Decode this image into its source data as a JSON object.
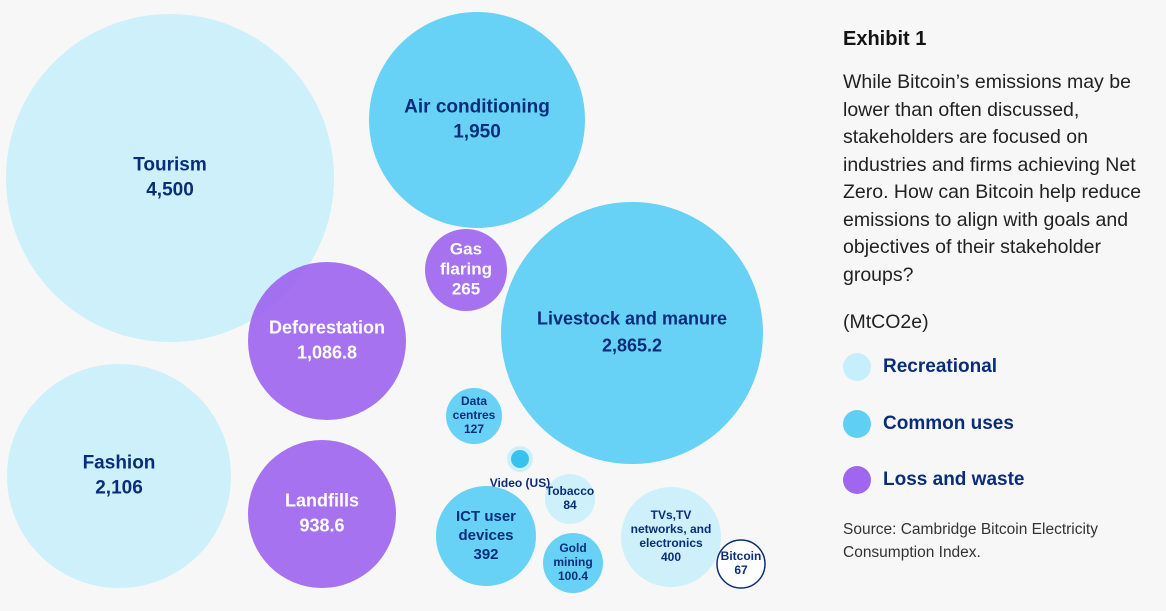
{
  "exhibit": {
    "title": "Exhibit 1",
    "description": "While Bitcoin’s emissions may be lower than often discussed, stakeholders are focused on industries and firms achieving Net Zero. How can Bitcoin help reduce emissions to align with goals and objectives of their stakeholder groups?",
    "units": "(MtCO2e)",
    "source": "Source: Cambridge Bitcoin Electricity Consumption Index."
  },
  "legend": [
    {
      "key": "recreational",
      "label": "Recreational",
      "color": "#c6eefc"
    },
    {
      "key": "common",
      "label": "Common uses",
      "color": "#5fd0f4"
    },
    {
      "key": "loss",
      "label": "Loss and waste",
      "color": "#a066ee"
    }
  ],
  "chart_data": {
    "type": "bubble",
    "title": "",
    "unit": "MtCO2e",
    "items": [
      {
        "label": "Tourism",
        "value_label": "4,500",
        "value": 4500,
        "category": "recreational"
      },
      {
        "label": "Air conditioning",
        "value_label": "1,950",
        "value": 1950,
        "category": "common"
      },
      {
        "label": "Livestock and manure",
        "value_label": "2,865.2",
        "value": 2865.2,
        "category": "common"
      },
      {
        "label": "Deforestation",
        "value_label": "1,086.8",
        "value": 1086.8,
        "category": "loss"
      },
      {
        "label": "Fashion",
        "value_label": "2,106",
        "value": 2106,
        "category": "recreational"
      },
      {
        "label": "Landfills",
        "value_label": "938.6",
        "value": 938.6,
        "category": "loss"
      },
      {
        "label": "Gas flaring",
        "value_label": "265",
        "value": 265,
        "category": "loss"
      },
      {
        "label": "Data centres",
        "value_label": "127",
        "value": 127,
        "category": "common"
      },
      {
        "label": "Video (US)",
        "value_label": "",
        "value": null,
        "category": "common"
      },
      {
        "label": "Tobacco",
        "value_label": "84",
        "value": 84,
        "category": "recreational"
      },
      {
        "label": "ICT user devices",
        "value_label": "392",
        "value": 392,
        "category": "common"
      },
      {
        "label": "Gold mining",
        "value_label": "100.4",
        "value": 100.4,
        "category": "common"
      },
      {
        "label": "TVs,TV networks, and electronics",
        "value_label": "400",
        "value": 400,
        "category": "recreational"
      },
      {
        "label": "Bitcoin",
        "value_label": "67",
        "value": 67,
        "category": "bitcoin"
      }
    ]
  }
}
